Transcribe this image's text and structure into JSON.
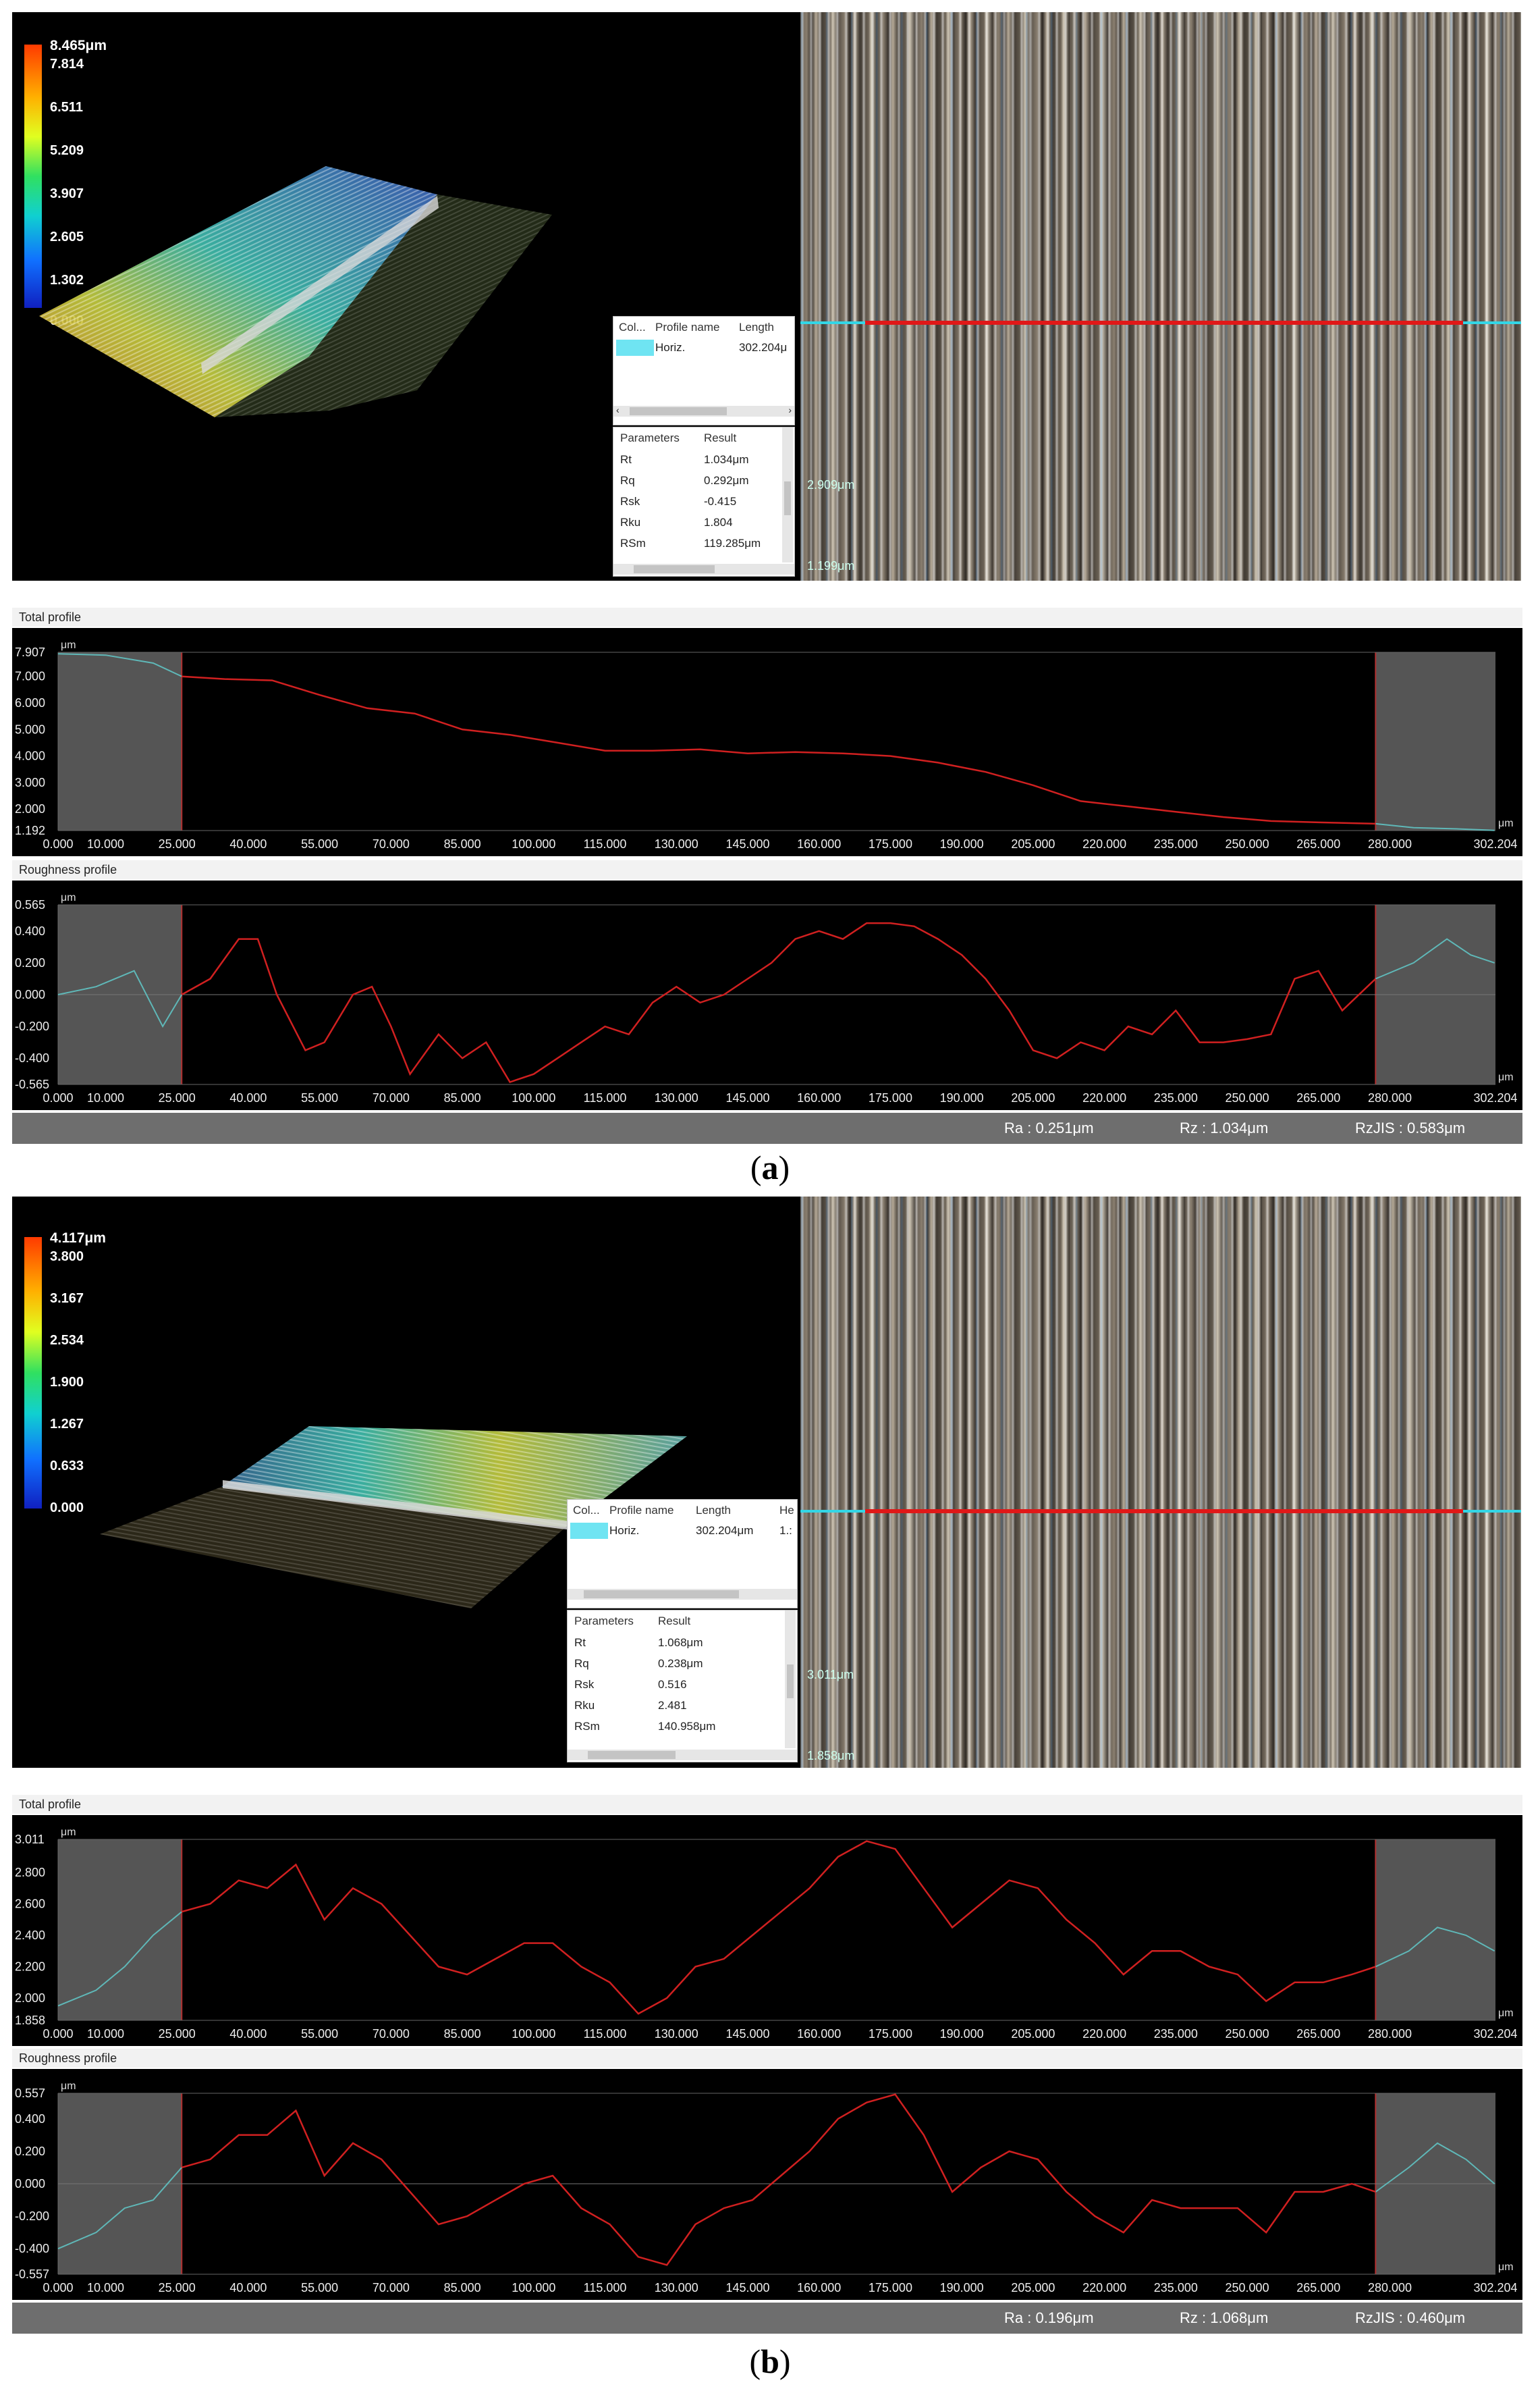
{
  "panels": [
    {
      "caption": "a",
      "colorscale": {
        "top": "8.465μm",
        "ticks": [
          "7.814",
          "6.511",
          "5.209",
          "3.907",
          "2.605",
          "1.302",
          "0.000"
        ]
      },
      "profile_table": {
        "headers": [
          "Col...",
          "Profile name",
          "Length"
        ],
        "row": {
          "name": "Horiz.",
          "length": "302.204μ"
        }
      },
      "params_table": {
        "headers": [
          "Parameters",
          "Result"
        ],
        "rows": [
          {
            "name": "Rt",
            "value": "1.034μm"
          },
          {
            "name": "Rq",
            "value": "0.292μm"
          },
          {
            "name": "Rsk",
            "value": "-0.415"
          },
          {
            "name": "Rku",
            "value": "1.804"
          },
          {
            "name": "RSm",
            "value": "119.285μm"
          }
        ]
      },
      "height_markers": [
        "2.909μm",
        "1.199μm"
      ],
      "total_profile": {
        "title": "Total profile",
        "unit": "μm",
        "y_labels": [
          "7.907",
          "7.000",
          "6.000",
          "5.000",
          "4.000",
          "3.000",
          "2.000",
          "1.192"
        ],
        "ylim": [
          1.192,
          7.907
        ]
      },
      "roughness_profile": {
        "title": "Roughness profile",
        "unit": "μm",
        "y_labels": [
          "0.565",
          "0.400",
          "0.200",
          "0.000",
          "-0.200",
          "-0.400",
          "-0.565"
        ],
        "ylim": [
          -0.565,
          0.565
        ]
      },
      "status": {
        "ra": "Ra : 0.251μm",
        "rz": "Rz : 1.034μm",
        "rzjis": "RzJIS : 0.583μm"
      }
    },
    {
      "caption": "b",
      "colorscale": {
        "top": "4.117μm",
        "ticks": [
          "3.800",
          "3.167",
          "2.534",
          "1.900",
          "1.267",
          "0.633",
          "0.000"
        ]
      },
      "profile_table": {
        "headers": [
          "Col...",
          "Profile name",
          "Length",
          "He"
        ],
        "row": {
          "name": "Horiz.",
          "length": "302.204μm",
          "extra": "1.:"
        }
      },
      "params_table": {
        "headers": [
          "Parameters",
          "Result"
        ],
        "rows": [
          {
            "name": "Rt",
            "value": "1.068μm"
          },
          {
            "name": "Rq",
            "value": "0.238μm"
          },
          {
            "name": "Rsk",
            "value": "0.516"
          },
          {
            "name": "Rku",
            "value": "2.481"
          },
          {
            "name": "RSm",
            "value": "140.958μm"
          }
        ]
      },
      "height_markers": [
        "3.011μm",
        "1.858μm"
      ],
      "total_profile": {
        "title": "Total profile",
        "unit": "μm",
        "y_labels": [
          "3.011",
          "2.800",
          "2.600",
          "2.400",
          "2.200",
          "2.000",
          "1.858"
        ],
        "ylim": [
          1.858,
          3.011
        ]
      },
      "roughness_profile": {
        "title": "Roughness profile",
        "unit": "μm",
        "y_labels": [
          "0.557",
          "0.400",
          "0.200",
          "0.000",
          "-0.200",
          "-0.400",
          "-0.557"
        ],
        "ylim": [
          -0.557,
          0.557
        ]
      },
      "status": {
        "ra": "Ra : 0.196μm",
        "rz": "Rz : 1.068μm",
        "rzjis": "RzJIS : 0.460μm"
      }
    }
  ],
  "x_axis": {
    "unit": "μm",
    "labels": [
      "0.000",
      "10.000",
      "25.000",
      "40.000",
      "55.000",
      "70.000",
      "85.000",
      "100.000",
      "115.000",
      "130.000",
      "145.000",
      "160.000",
      "175.000",
      "190.000",
      "205.000",
      "220.000",
      "235.000",
      "250.000",
      "265.000",
      "280.000",
      "302.204"
    ],
    "xlim": [
      0,
      302.204
    ],
    "evaluation_window": [
      26,
      277
    ]
  },
  "chart_data": [
    {
      "type": "line",
      "title": "Total profile",
      "panel": "a",
      "ylabel": "μm",
      "xlabel": "μm",
      "xlim": [
        0,
        302.204
      ],
      "ylim": [
        1.192,
        7.907
      ],
      "series": [
        {
          "x": [
            0,
            10,
            20,
            26,
            35,
            45,
            55,
            65,
            75,
            85,
            95,
            105,
            115,
            125,
            135,
            145,
            155,
            165,
            175,
            185,
            195,
            205,
            215,
            225,
            235,
            245,
            255,
            265,
            277,
            285,
            295,
            302
          ],
          "values": [
            7.85,
            7.8,
            7.5,
            7.0,
            6.9,
            6.85,
            6.3,
            5.8,
            5.6,
            5.0,
            4.8,
            4.5,
            4.2,
            4.2,
            4.25,
            4.1,
            4.15,
            4.1,
            4.0,
            3.75,
            3.4,
            2.9,
            2.3,
            2.1,
            1.9,
            1.7,
            1.55,
            1.5,
            1.45,
            1.3,
            1.25,
            1.2
          ]
        }
      ]
    },
    {
      "type": "line",
      "title": "Roughness profile",
      "panel": "a",
      "ylabel": "μm",
      "xlabel": "μm",
      "xlim": [
        0,
        302.204
      ],
      "ylim": [
        -0.565,
        0.565
      ],
      "series": [
        {
          "x": [
            0,
            8,
            16,
            22,
            26,
            32,
            38,
            42,
            46,
            52,
            56,
            62,
            66,
            70,
            74,
            80,
            85,
            90,
            95,
            100,
            105,
            110,
            115,
            120,
            125,
            130,
            135,
            140,
            145,
            150,
            155,
            160,
            165,
            170,
            175,
            180,
            185,
            190,
            195,
            200,
            205,
            210,
            215,
            220,
            225,
            230,
            235,
            240,
            245,
            250,
            255,
            260,
            265,
            270,
            277,
            285,
            292,
            297,
            302
          ],
          "values": [
            0.0,
            0.05,
            0.15,
            -0.2,
            0.0,
            0.1,
            0.35,
            0.35,
            0.0,
            -0.35,
            -0.3,
            0.0,
            0.05,
            -0.2,
            -0.5,
            -0.25,
            -0.4,
            -0.3,
            -0.55,
            -0.5,
            -0.4,
            -0.3,
            -0.2,
            -0.25,
            -0.05,
            0.05,
            -0.05,
            0.0,
            0.1,
            0.2,
            0.35,
            0.4,
            0.35,
            0.45,
            0.45,
            0.43,
            0.35,
            0.25,
            0.1,
            -0.1,
            -0.35,
            -0.4,
            -0.3,
            -0.35,
            -0.2,
            -0.25,
            -0.1,
            -0.3,
            -0.3,
            -0.28,
            -0.25,
            0.1,
            0.15,
            -0.1,
            0.1,
            0.2,
            0.35,
            0.25,
            0.2
          ]
        }
      ]
    },
    {
      "type": "line",
      "title": "Total profile",
      "panel": "b",
      "ylabel": "μm",
      "xlabel": "μm",
      "xlim": [
        0,
        302.204
      ],
      "ylim": [
        1.858,
        3.011
      ],
      "series": [
        {
          "x": [
            0,
            8,
            14,
            20,
            26,
            32,
            38,
            44,
            50,
            56,
            62,
            68,
            74,
            80,
            86,
            92,
            98,
            104,
            110,
            116,
            122,
            128,
            134,
            140,
            146,
            152,
            158,
            164,
            170,
            176,
            182,
            188,
            194,
            200,
            206,
            212,
            218,
            224,
            230,
            236,
            242,
            248,
            254,
            260,
            266,
            272,
            277,
            284,
            290,
            296,
            302
          ],
          "values": [
            1.95,
            2.05,
            2.2,
            2.4,
            2.55,
            2.6,
            2.75,
            2.7,
            2.85,
            2.5,
            2.7,
            2.6,
            2.4,
            2.2,
            2.15,
            2.25,
            2.35,
            2.35,
            2.2,
            2.1,
            1.9,
            2.0,
            2.2,
            2.25,
            2.4,
            2.55,
            2.7,
            2.9,
            3.0,
            2.95,
            2.7,
            2.45,
            2.6,
            2.75,
            2.7,
            2.5,
            2.35,
            2.15,
            2.3,
            2.3,
            2.2,
            2.15,
            1.98,
            2.1,
            2.1,
            2.15,
            2.2,
            2.3,
            2.45,
            2.4,
            2.3
          ]
        }
      ]
    },
    {
      "type": "line",
      "title": "Roughness profile",
      "panel": "b",
      "ylabel": "μm",
      "xlabel": "μm",
      "xlim": [
        0,
        302.204
      ],
      "ylim": [
        -0.557,
        0.557
      ],
      "series": [
        {
          "x": [
            0,
            8,
            14,
            20,
            26,
            32,
            38,
            44,
            50,
            56,
            62,
            68,
            74,
            80,
            86,
            92,
            98,
            104,
            110,
            116,
            122,
            128,
            134,
            140,
            146,
            152,
            158,
            164,
            170,
            176,
            182,
            188,
            194,
            200,
            206,
            212,
            218,
            224,
            230,
            236,
            242,
            248,
            254,
            260,
            266,
            272,
            277,
            284,
            290,
            296,
            302
          ],
          "values": [
            -0.4,
            -0.3,
            -0.15,
            -0.1,
            0.1,
            0.15,
            0.3,
            0.3,
            0.45,
            0.05,
            0.25,
            0.15,
            -0.05,
            -0.25,
            -0.2,
            -0.1,
            0.0,
            0.05,
            -0.15,
            -0.25,
            -0.45,
            -0.5,
            -0.25,
            -0.15,
            -0.1,
            0.05,
            0.2,
            0.4,
            0.5,
            0.55,
            0.3,
            -0.05,
            0.1,
            0.2,
            0.15,
            -0.05,
            -0.2,
            -0.3,
            -0.1,
            -0.15,
            -0.15,
            -0.15,
            -0.3,
            -0.05,
            -0.05,
            0.0,
            -0.05,
            0.1,
            0.25,
            0.15,
            0.0
          ]
        }
      ]
    }
  ]
}
